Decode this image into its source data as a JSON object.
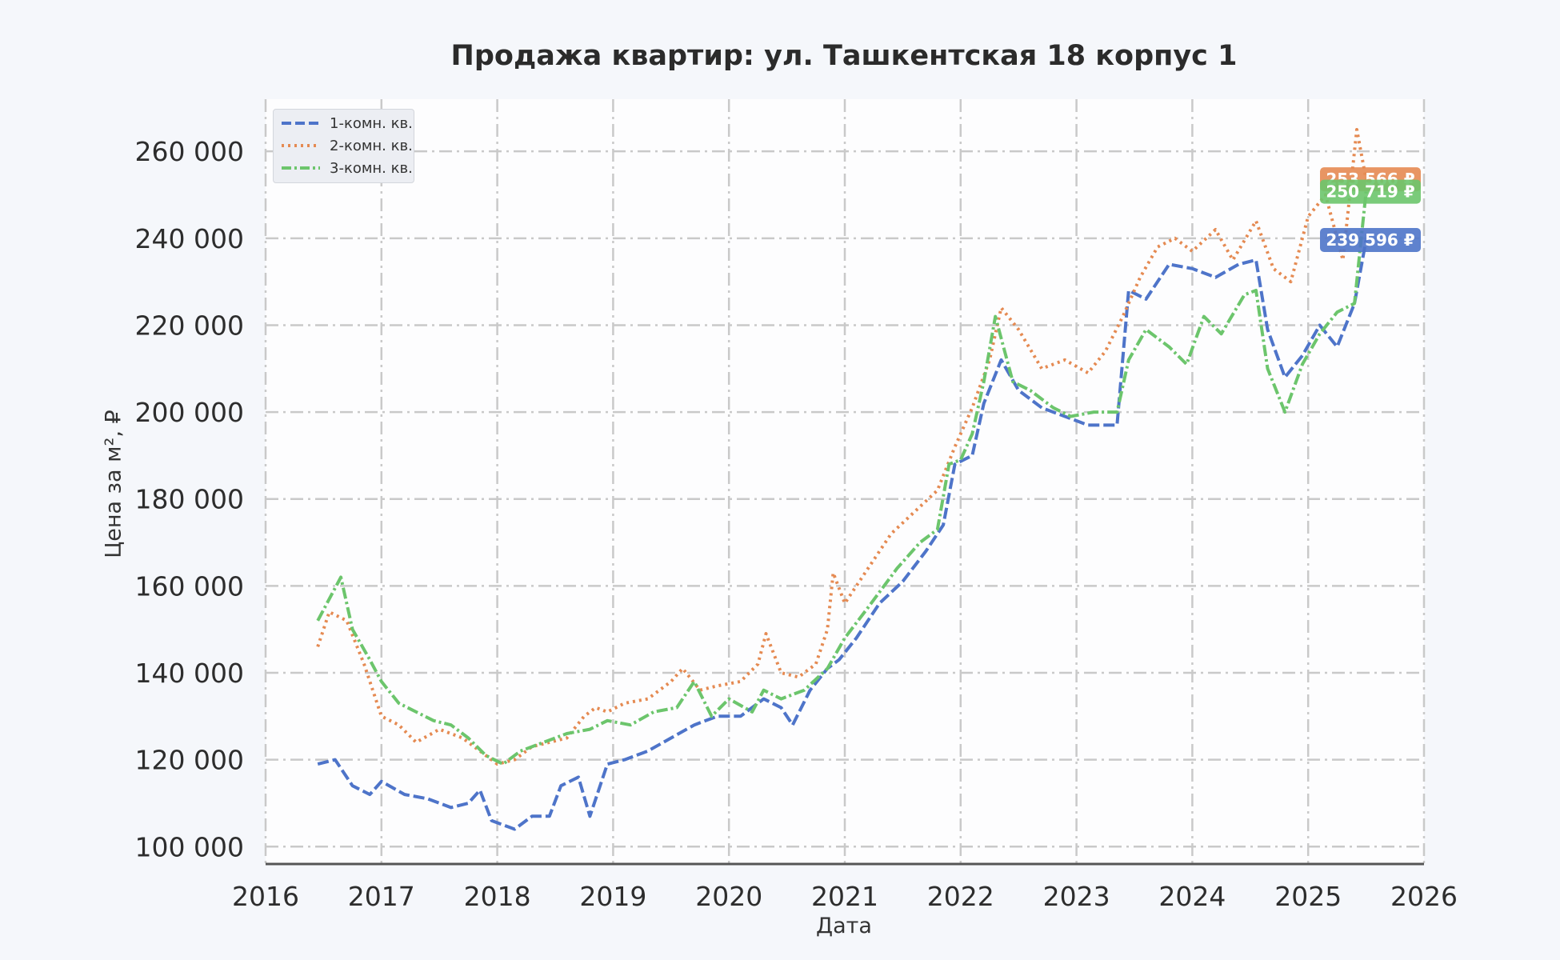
{
  "chart_data": {
    "type": "line",
    "title": "Продажа квартир: ул. Ташкентская 18 корпус 1",
    "xlabel": "Дата",
    "ylabel": "Цена за м², ₽",
    "xlim": [
      2016,
      2026
    ],
    "ylim": [
      96000,
      272000
    ],
    "x_ticks": [
      "2016",
      "2017",
      "2018",
      "2019",
      "2020",
      "2021",
      "2022",
      "2023",
      "2024",
      "2025",
      "2026"
    ],
    "y_ticks": [
      "100 000",
      "120 000",
      "140 000",
      "160 000",
      "180 000",
      "200 000",
      "220 000",
      "240 000",
      "260 000"
    ],
    "y_tick_values": [
      100000,
      120000,
      140000,
      160000,
      180000,
      200000,
      220000,
      240000,
      260000
    ],
    "grid": true,
    "legend_position": "top-left",
    "series": [
      {
        "name": "1-комн. кв.",
        "color": "#4e74c9",
        "dash": "dashed",
        "end_label": "239 596 ₽",
        "x": [
          2016.45,
          2016.6,
          2016.75,
          2016.9,
          2017.0,
          2017.2,
          2017.4,
          2017.6,
          2017.75,
          2017.85,
          2017.95,
          2018.05,
          2018.15,
          2018.3,
          2018.45,
          2018.55,
          2018.7,
          2018.8,
          2018.95,
          2019.1,
          2019.3,
          2019.5,
          2019.7,
          2019.9,
          2020.1,
          2020.3,
          2020.45,
          2020.55,
          2020.7,
          2020.85,
          2020.95,
          2021.1,
          2021.3,
          2021.5,
          2021.7,
          2021.85,
          2021.95,
          2022.1,
          2022.2,
          2022.35,
          2022.5,
          2022.7,
          2022.9,
          2023.1,
          2023.35,
          2023.45,
          2023.6,
          2023.8,
          2024.0,
          2024.2,
          2024.4,
          2024.55,
          2024.65,
          2024.8,
          2024.95,
          2025.1,
          2025.25,
          2025.4,
          2025.5
        ],
        "values": [
          119000,
          120000,
          114000,
          112000,
          115000,
          112000,
          111000,
          109000,
          110000,
          113000,
          106000,
          105000,
          104000,
          107000,
          107000,
          114000,
          116000,
          107000,
          119000,
          120000,
          122000,
          125000,
          128000,
          130000,
          130000,
          134000,
          132000,
          128000,
          136000,
          141000,
          143000,
          148000,
          156000,
          161000,
          168000,
          174000,
          188000,
          190000,
          202000,
          212000,
          205000,
          201000,
          199000,
          197000,
          197000,
          228000,
          226000,
          234000,
          233000,
          231000,
          234000,
          235000,
          219000,
          208000,
          213000,
          220000,
          215000,
          225000,
          239596
        ]
      },
      {
        "name": "2-комн. кв.",
        "color": "#e58a52",
        "dash": "dotted",
        "end_label": "253 566 ₽",
        "x": [
          2016.45,
          2016.55,
          2016.7,
          2016.85,
          2017.0,
          2017.15,
          2017.3,
          2017.5,
          2017.7,
          2017.85,
          2018.0,
          2018.15,
          2018.3,
          2018.45,
          2018.6,
          2018.75,
          2018.85,
          2018.95,
          2019.1,
          2019.3,
          2019.5,
          2019.6,
          2019.75,
          2019.9,
          2020.1,
          2020.25,
          2020.32,
          2020.45,
          2020.6,
          2020.75,
          2020.85,
          2020.9,
          2021.0,
          2021.2,
          2021.4,
          2021.6,
          2021.8,
          2021.95,
          2022.1,
          2022.25,
          2022.35,
          2022.5,
          2022.7,
          2022.9,
          2023.1,
          2023.25,
          2023.4,
          2023.55,
          2023.7,
          2023.85,
          2024.0,
          2024.2,
          2024.35,
          2024.55,
          2024.7,
          2024.85,
          2025.0,
          2025.15,
          2025.3,
          2025.42,
          2025.5
        ],
        "values": [
          146000,
          154000,
          152000,
          142000,
          130000,
          128000,
          124000,
          127000,
          125000,
          122000,
          119000,
          120000,
          123000,
          124000,
          125000,
          130000,
          132000,
          131000,
          133000,
          134000,
          138000,
          141000,
          136000,
          137000,
          138000,
          142000,
          149000,
          140000,
          139000,
          142000,
          150000,
          163000,
          156000,
          164000,
          172000,
          177000,
          182000,
          192000,
          201000,
          212000,
          224000,
          219000,
          210000,
          212000,
          209000,
          214000,
          222000,
          231000,
          238000,
          240000,
          237000,
          242000,
          235000,
          244000,
          233000,
          230000,
          245000,
          250000,
          235000,
          265000,
          253566
        ]
      },
      {
        "name": "3-комн. кв.",
        "color": "#6cc56c",
        "dash": "dashdot",
        "end_label": "250 719 ₽",
        "x": [
          2016.45,
          2016.55,
          2016.65,
          2016.75,
          2016.9,
          2017.0,
          2017.15,
          2017.3,
          2017.45,
          2017.6,
          2017.75,
          2017.9,
          2018.05,
          2018.2,
          2018.4,
          2018.6,
          2018.8,
          2018.95,
          2019.15,
          2019.35,
          2019.55,
          2019.7,
          2019.85,
          2020.0,
          2020.2,
          2020.3,
          2020.45,
          2020.65,
          2020.85,
          2021.0,
          2021.2,
          2021.45,
          2021.65,
          2021.8,
          2021.9,
          2022.0,
          2022.1,
          2022.2,
          2022.3,
          2022.45,
          2022.6,
          2022.8,
          2022.95,
          2023.15,
          2023.35,
          2023.45,
          2023.6,
          2023.8,
          2023.95,
          2024.1,
          2024.25,
          2024.45,
          2024.55,
          2024.65,
          2024.8,
          2024.95,
          2025.1,
          2025.25,
          2025.4,
          2025.5
        ],
        "values": [
          152000,
          157000,
          162000,
          150000,
          143000,
          138000,
          133000,
          131000,
          129000,
          128000,
          125000,
          121000,
          119000,
          122000,
          124000,
          126000,
          127000,
          129000,
          128000,
          131000,
          132000,
          138000,
          130000,
          134000,
          131000,
          136000,
          134000,
          136000,
          141000,
          148000,
          155000,
          164000,
          170000,
          173000,
          188000,
          189000,
          195000,
          207000,
          222000,
          207000,
          205000,
          201000,
          199000,
          200000,
          200000,
          212000,
          219000,
          215000,
          211000,
          222000,
          218000,
          227000,
          228000,
          210000,
          200000,
          211000,
          218000,
          223000,
          225000,
          250719
        ]
      }
    ]
  }
}
